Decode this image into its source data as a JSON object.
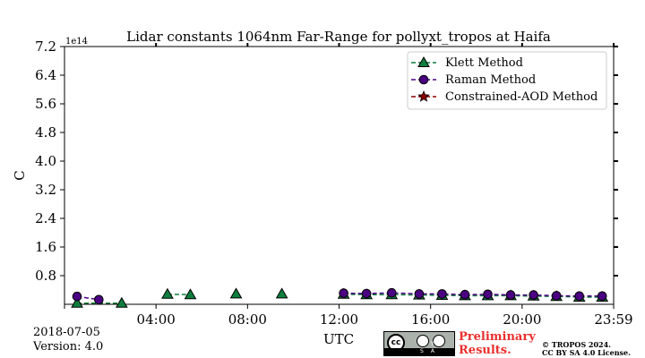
{
  "chart_data": {
    "type": "scatter",
    "title": "Lidar constants 1064nm Far-Range for pollyxt_tropos at Haifa",
    "xlabel": "UTC",
    "ylabel": "C",
    "y_offset_text": "1e14",
    "xlim": [
      0,
      24
    ],
    "ylim": [
      0,
      7.2
    ],
    "xticks": [
      4,
      8,
      12,
      16,
      20,
      24
    ],
    "xtick_labels": [
      "04:00",
      "08:00",
      "12:00",
      "16:00",
      "20:00",
      "23:59"
    ],
    "yticks": [
      0.8,
      1.6,
      2.4,
      3.2,
      4.0,
      4.8,
      5.6,
      6.4,
      7.2
    ],
    "ytick_labels": [
      "0.8",
      "1.6",
      "2.4",
      "3.2",
      "4.0",
      "4.8",
      "5.6",
      "6.4",
      "7.2"
    ],
    "grid": false,
    "legend_position": "upper-right",
    "series": [
      {
        "name": "Klett Method",
        "marker": "triangle",
        "color": "#0e7e3e",
        "points": [
          [
            0.55,
            0.03
          ],
          [
            2.5,
            0.03
          ],
          [
            4.5,
            0.28
          ],
          [
            5.5,
            0.27
          ],
          [
            7.5,
            0.29
          ],
          [
            9.5,
            0.29
          ],
          [
            12.2,
            0.28
          ],
          [
            13.2,
            0.27
          ],
          [
            14.3,
            0.27
          ],
          [
            15.5,
            0.26
          ],
          [
            16.5,
            0.25
          ],
          [
            17.5,
            0.24
          ],
          [
            18.5,
            0.24
          ],
          [
            19.5,
            0.24
          ],
          [
            20.5,
            0.23
          ],
          [
            21.5,
            0.22
          ],
          [
            22.5,
            0.2
          ],
          [
            23.5,
            0.2
          ]
        ],
        "segments": [
          [
            0,
            1
          ],
          [
            2,
            3
          ],
          [
            6,
            17
          ]
        ]
      },
      {
        "name": "Raman Method",
        "marker": "circle",
        "color": "#4b0082",
        "points": [
          [
            0.55,
            0.22
          ],
          [
            1.5,
            0.13
          ],
          [
            12.2,
            0.31
          ],
          [
            13.2,
            0.3
          ],
          [
            14.3,
            0.32
          ],
          [
            15.5,
            0.29
          ],
          [
            16.5,
            0.29
          ],
          [
            17.5,
            0.27
          ],
          [
            18.5,
            0.28
          ],
          [
            19.5,
            0.26
          ],
          [
            20.5,
            0.26
          ],
          [
            21.5,
            0.24
          ],
          [
            22.5,
            0.23
          ],
          [
            23.5,
            0.23
          ]
        ],
        "segments": [
          [
            0,
            1
          ],
          [
            2,
            13
          ]
        ]
      },
      {
        "name": "Constrained-AOD Method",
        "marker": "star",
        "color": "#8b0000",
        "points": [],
        "segments": []
      }
    ]
  },
  "footer": {
    "date": "2018-07-05",
    "version": "Version: 4.0",
    "preliminary_line1": "Preliminary",
    "preliminary_line2": "Results.",
    "copyright_line1": "© TROPOS 2024.",
    "copyright_line2": "CC BY SA 4.0 License.",
    "license_badge_text": "cc",
    "license_badge_strip": "BY SA"
  }
}
